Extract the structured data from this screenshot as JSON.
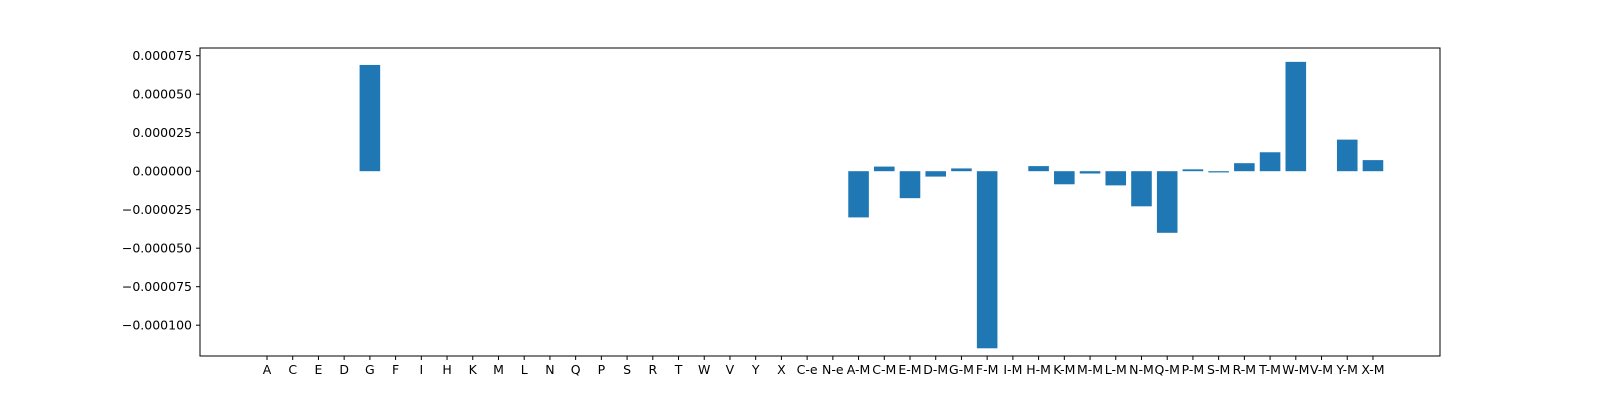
{
  "chart_data": {
    "type": "bar",
    "title": "",
    "xlabel": "",
    "ylabel": "",
    "ylim": [
      -0.00012,
      8e-05
    ],
    "yticks": [
      -0.0001,
      -7.5e-05,
      -5e-05,
      -2.5e-05,
      0.0,
      2.5e-05,
      5e-05,
      7.5e-05
    ],
    "ytick_labels": [
      "−0.000100",
      "−0.000075",
      "−0.000050",
      "−0.000025",
      "0.000000",
      "0.000025",
      "0.000050",
      "0.000075"
    ],
    "bar_color": "#1f77b4",
    "grid": false,
    "categories": [
      "A",
      "C",
      "E",
      "D",
      "G",
      "F",
      "I",
      "H",
      "K",
      "M",
      "L",
      "N",
      "Q",
      "P",
      "S",
      "R",
      "T",
      "W",
      "V",
      "Y",
      "X",
      "C-e",
      "N-e",
      "A-M",
      "C-M",
      "E-M",
      "D-M",
      "G-M",
      "F-M",
      "I-M",
      "H-M",
      "K-M",
      "M-M",
      "L-M",
      "N-M",
      "Q-M",
      "P-M",
      "S-M",
      "R-M",
      "T-M",
      "W-M",
      "V-M",
      "Y-M",
      "X-M"
    ],
    "values": [
      0,
      0,
      0,
      0,
      6.9e-05,
      0,
      0,
      0,
      0,
      0,
      0,
      0,
      0,
      0,
      0,
      0,
      0,
      0,
      0,
      0,
      0,
      0,
      0,
      -3e-05,
      3e-06,
      -1.75e-05,
      -3.5e-06,
      1.8e-06,
      -0.000115,
      0,
      3.3e-06,
      -8.5e-06,
      -1.5e-06,
      -9.2e-06,
      -2.28e-05,
      -4e-05,
      1.2e-06,
      -8e-07,
      5.2e-06,
      1.23e-05,
      7.1e-05,
      0,
      2.05e-05,
      7.2e-06
    ]
  }
}
